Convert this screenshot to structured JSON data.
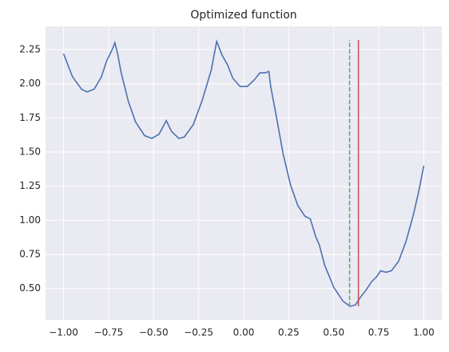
{
  "chart_data": {
    "type": "line",
    "title": "Optimized function",
    "x": [
      -1.0,
      -0.95,
      -0.9,
      -0.87,
      -0.83,
      -0.79,
      -0.76,
      -0.73,
      -0.715,
      -0.7,
      -0.68,
      -0.64,
      -0.6,
      -0.55,
      -0.51,
      -0.47,
      -0.43,
      -0.4,
      -0.36,
      -0.33,
      -0.28,
      -0.23,
      -0.18,
      -0.15,
      -0.12,
      -0.09,
      -0.06,
      -0.02,
      0.02,
      0.06,
      0.09,
      0.12,
      0.14,
      0.15,
      0.18,
      0.22,
      0.26,
      0.3,
      0.34,
      0.37,
      0.4,
      0.42,
      0.45,
      0.5,
      0.55,
      0.59,
      0.62,
      0.65,
      0.68,
      0.71,
      0.74,
      0.76,
      0.79,
      0.82,
      0.86,
      0.9,
      0.94,
      0.97,
      1.0
    ],
    "series": [
      {
        "color": "#4c72b0",
        "values": [
          2.22,
          2.05,
          1.96,
          1.94,
          1.96,
          2.05,
          2.17,
          2.25,
          2.3,
          2.22,
          2.08,
          1.87,
          1.72,
          1.62,
          1.6,
          1.63,
          1.73,
          1.65,
          1.6,
          1.61,
          1.7,
          1.88,
          2.1,
          2.31,
          2.21,
          2.14,
          2.04,
          1.98,
          1.98,
          2.03,
          2.08,
          2.08,
          2.09,
          1.98,
          1.77,
          1.48,
          1.26,
          1.11,
          1.03,
          1.01,
          0.88,
          0.82,
          0.67,
          0.51,
          0.41,
          0.37,
          0.38,
          0.44,
          0.49,
          0.55,
          0.59,
          0.63,
          0.62,
          0.63,
          0.7,
          0.84,
          1.03,
          1.2,
          1.4
        ]
      }
    ],
    "vlines": [
      {
        "x": 0.588,
        "ymin": 0.37,
        "ymax": 2.32,
        "color": "#55a868",
        "dashed": true
      },
      {
        "x": 0.637,
        "ymin": 0.37,
        "ymax": 2.32,
        "color": "#c44e52",
        "dashed": false
      }
    ],
    "xlim": [
      -1.1,
      1.1
    ],
    "ylim": [
      0.27,
      2.42
    ],
    "xticks": [
      {
        "value": -1.0,
        "label": "−1.00"
      },
      {
        "value": -0.75,
        "label": "−0.75"
      },
      {
        "value": -0.5,
        "label": "−0.50"
      },
      {
        "value": -0.25,
        "label": "−0.25"
      },
      {
        "value": 0,
        "label": "0.00"
      },
      {
        "value": 0.25,
        "label": "0.25"
      },
      {
        "value": 0.5,
        "label": "0.50"
      },
      {
        "value": 0.75,
        "label": "0.75"
      },
      {
        "value": 1.0,
        "label": "1.00"
      }
    ],
    "yticks": [
      {
        "value": 0.5,
        "label": "0.50"
      },
      {
        "value": 0.75,
        "label": "0.75"
      },
      {
        "value": 1.0,
        "label": "1.00"
      },
      {
        "value": 1.25,
        "label": "1.25"
      },
      {
        "value": 1.5,
        "label": "1.50"
      },
      {
        "value": 1.75,
        "label": "1.75"
      },
      {
        "value": 2.0,
        "label": "2.00"
      },
      {
        "value": 2.25,
        "label": "2.25"
      }
    ],
    "grid": true
  }
}
